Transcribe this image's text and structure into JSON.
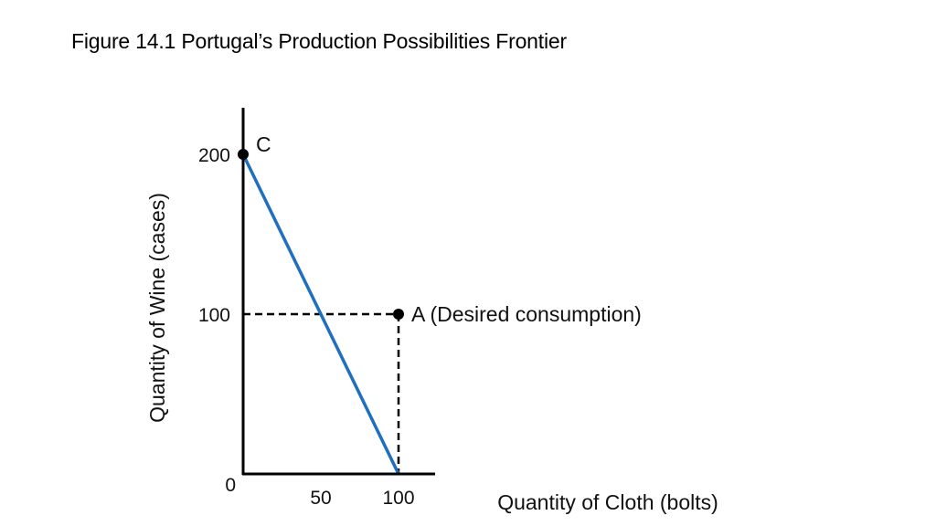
{
  "slide": {
    "title": "Figure 14.1  Portugal’s Production Possibilities Frontier"
  },
  "colors": {
    "frontier": "#1f6fc1",
    "axis": "#000000",
    "point": "#000000"
  },
  "chart_data": {
    "type": "line",
    "title": "",
    "xlabel": "Quantity of Cloth (bolts)",
    "ylabel": "Quantity of Wine (cases)",
    "xlim": [
      0,
      120
    ],
    "ylim": [
      0,
      230
    ],
    "origin_label": "0",
    "x_ticks": [
      {
        "value": 50,
        "label": "50"
      },
      {
        "value": 100,
        "label": "100"
      }
    ],
    "y_ticks": [
      {
        "value": 100,
        "label": "100"
      },
      {
        "value": 200,
        "label": "200"
      }
    ],
    "series": [
      {
        "points": [
          {
            "x": 0,
            "y": 200
          },
          {
            "x": 100,
            "y": 0
          }
        ]
      }
    ],
    "points": [
      {
        "id": "C",
        "label": "C",
        "x": 0,
        "y": 200
      },
      {
        "id": "A",
        "label": "A (Desired consumption)",
        "x": 100,
        "y": 100
      }
    ],
    "guide_lines": [
      {
        "from": {
          "x": 0,
          "y": 100
        },
        "to": {
          "x": 100,
          "y": 100
        },
        "style": "dashed"
      },
      {
        "from": {
          "x": 100,
          "y": 100
        },
        "to": {
          "x": 100,
          "y": 0
        },
        "style": "dashed"
      }
    ],
    "grid": false,
    "legend": "none"
  }
}
